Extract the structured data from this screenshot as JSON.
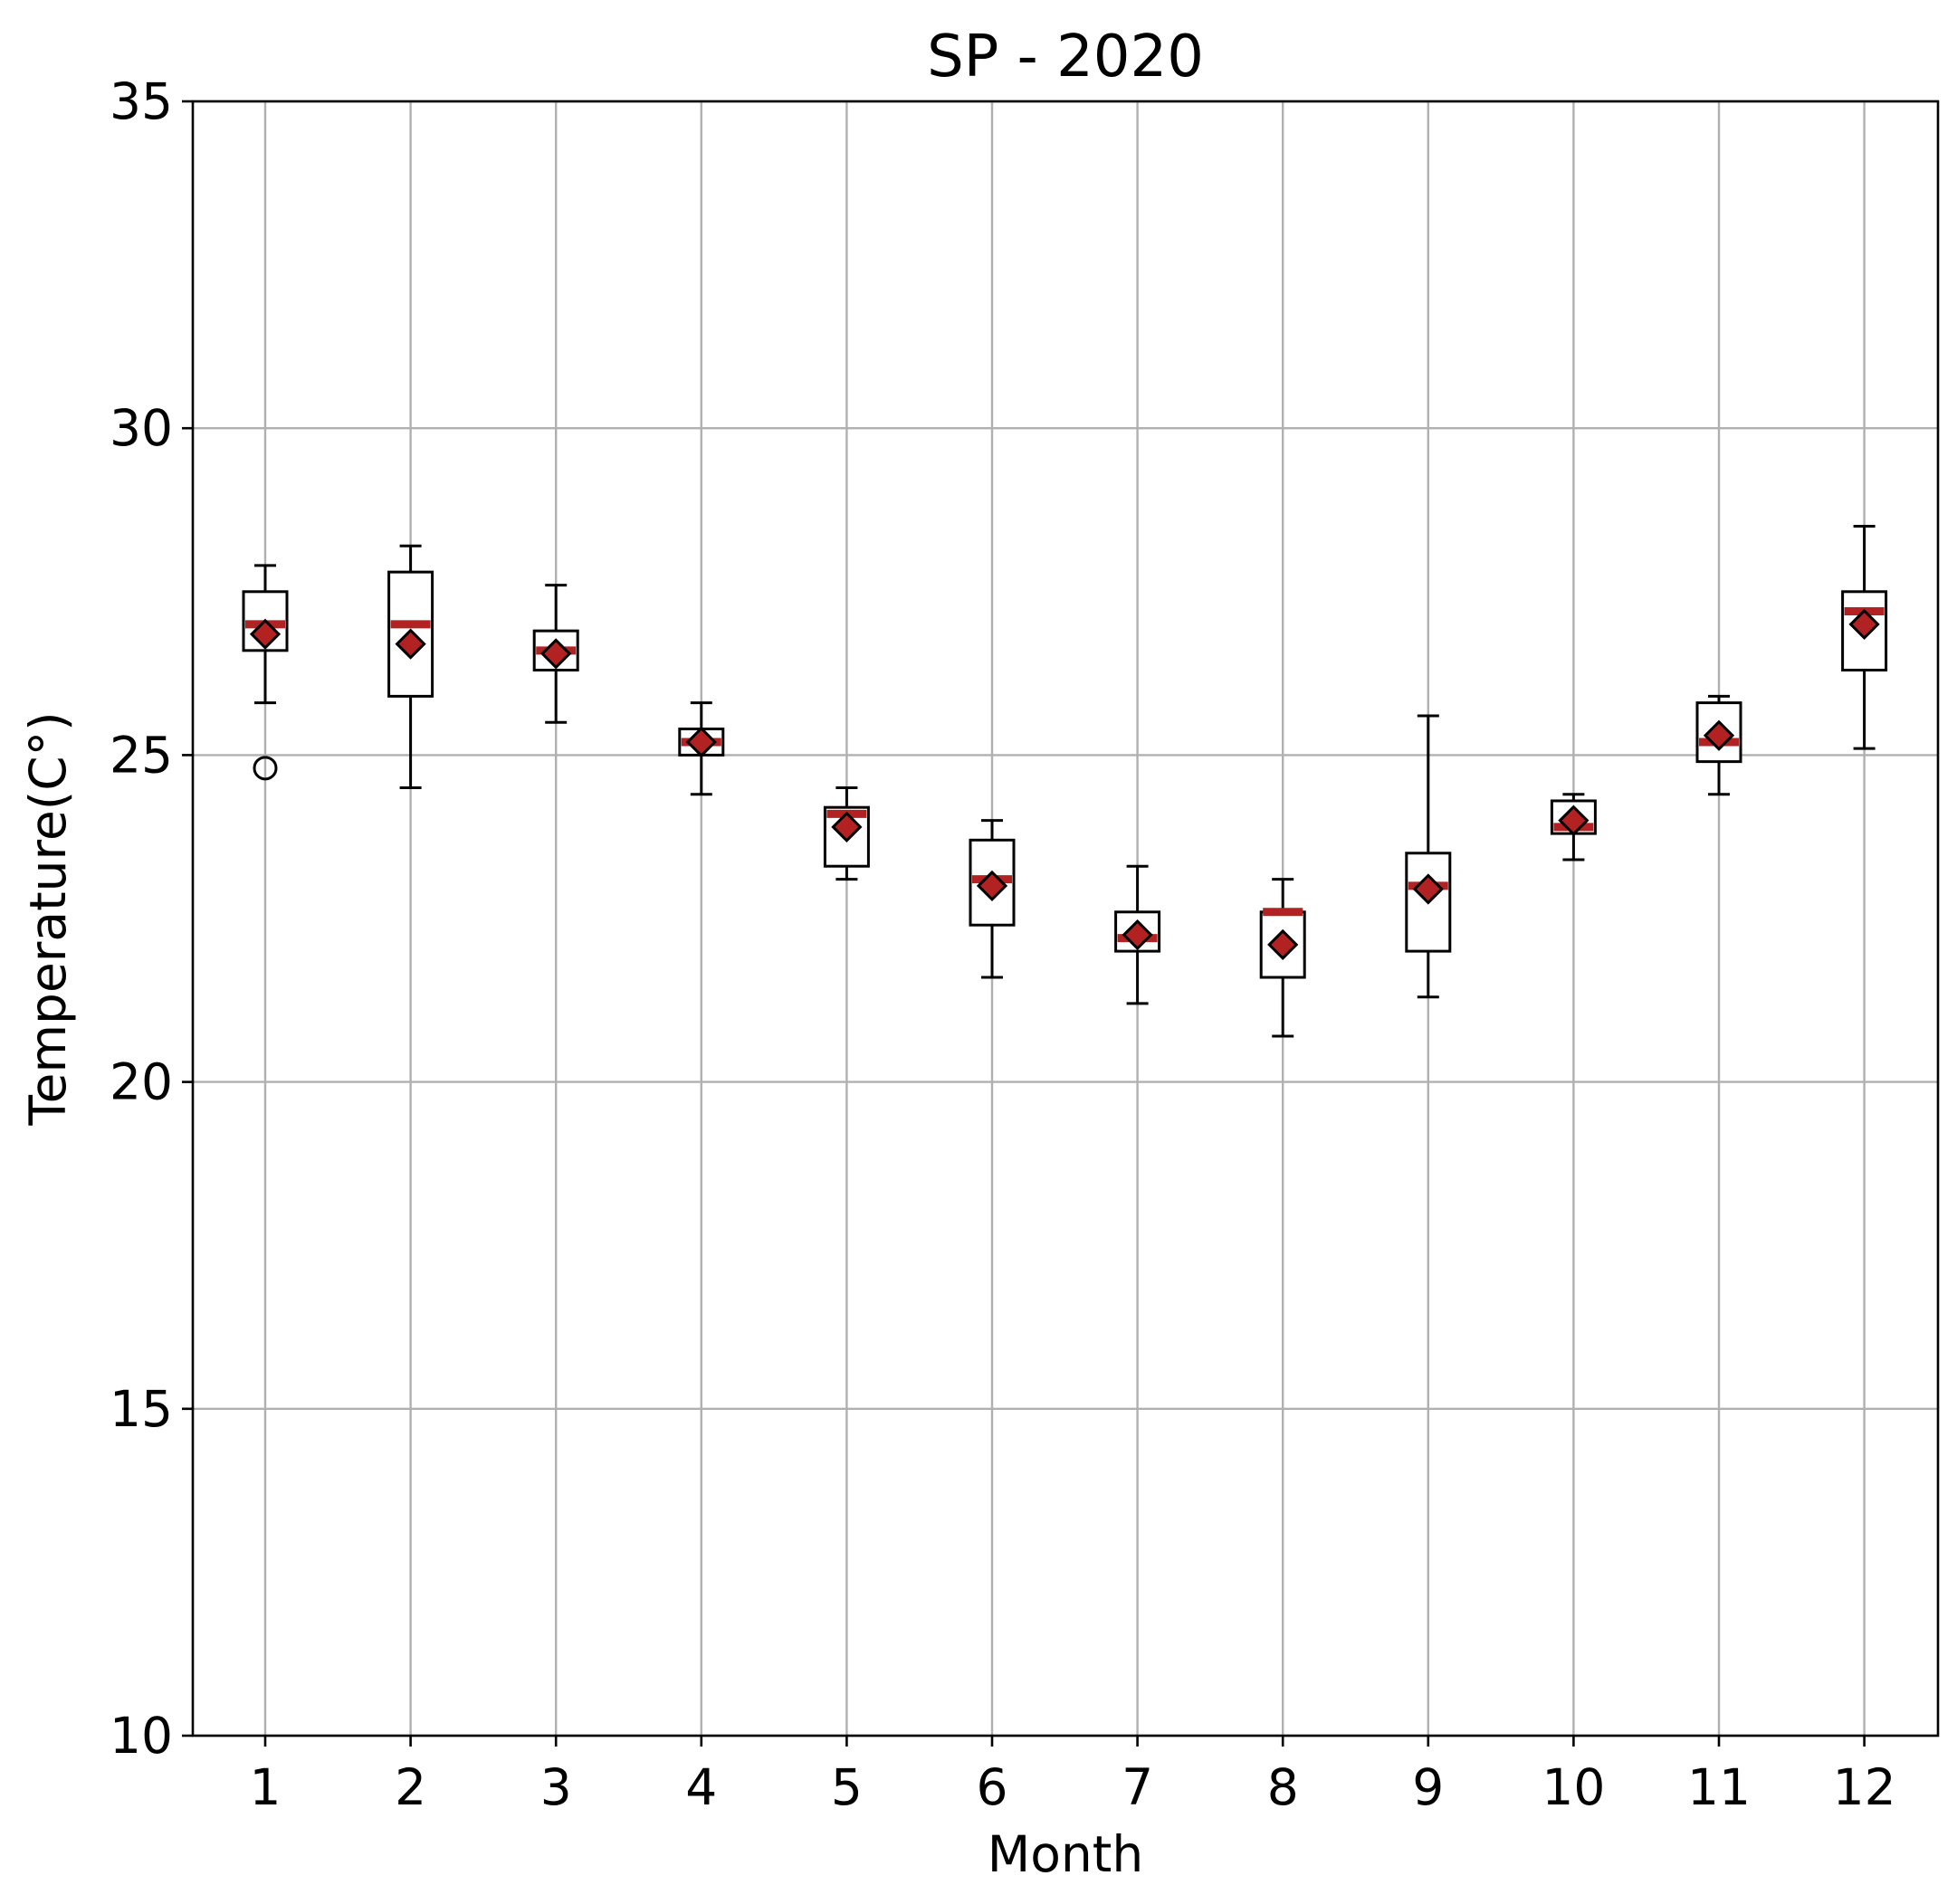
{
  "chart_data": {
    "type": "box",
    "title": "SP - 2020",
    "xlabel": "Month",
    "ylabel": "Temperature(C°)",
    "ylim": [
      10,
      35
    ],
    "yticks": [
      10,
      15,
      20,
      25,
      30,
      35
    ],
    "grid": true,
    "categories": [
      "1",
      "2",
      "3",
      "4",
      "5",
      "6",
      "7",
      "8",
      "9",
      "10",
      "11",
      "12"
    ],
    "boxes": [
      {
        "category": "1",
        "whisker_low": 25.8,
        "q1": 26.6,
        "median": 27.0,
        "q3": 27.5,
        "whisker_high": 27.9,
        "mean": 26.85,
        "fliers": [
          24.8
        ]
      },
      {
        "category": "2",
        "whisker_low": 24.5,
        "q1": 25.9,
        "median": 27.0,
        "q3": 27.8,
        "whisker_high": 28.2,
        "mean": 26.7,
        "fliers": []
      },
      {
        "category": "3",
        "whisker_low": 25.5,
        "q1": 26.3,
        "median": 26.6,
        "q3": 26.9,
        "whisker_high": 27.6,
        "mean": 26.55,
        "fliers": []
      },
      {
        "category": "4",
        "whisker_low": 24.4,
        "q1": 25.0,
        "median": 25.2,
        "q3": 25.4,
        "whisker_high": 25.8,
        "mean": 25.2,
        "fliers": []
      },
      {
        "category": "5",
        "whisker_low": 23.1,
        "q1": 23.3,
        "median": 24.1,
        "q3": 24.2,
        "whisker_high": 24.5,
        "mean": 23.9,
        "fliers": []
      },
      {
        "category": "6",
        "whisker_low": 21.6,
        "q1": 22.4,
        "median": 23.1,
        "q3": 23.7,
        "whisker_high": 24.0,
        "mean": 23.0,
        "fliers": []
      },
      {
        "category": "7",
        "whisker_low": 21.2,
        "q1": 22.0,
        "median": 22.2,
        "q3": 22.6,
        "whisker_high": 23.3,
        "mean": 22.25,
        "fliers": []
      },
      {
        "category": "8",
        "whisker_low": 20.7,
        "q1": 21.6,
        "median": 22.6,
        "q3": 22.6,
        "whisker_high": 23.1,
        "mean": 22.1,
        "fliers": []
      },
      {
        "category": "9",
        "whisker_low": 21.3,
        "q1": 22.0,
        "median": 23.0,
        "q3": 23.5,
        "whisker_high": 25.6,
        "mean": 22.95,
        "fliers": []
      },
      {
        "category": "10",
        "whisker_low": 23.4,
        "q1": 23.8,
        "median": 23.9,
        "q3": 24.3,
        "whisker_high": 24.4,
        "mean": 24.0,
        "fliers": []
      },
      {
        "category": "11",
        "whisker_low": 24.4,
        "q1": 24.9,
        "median": 25.2,
        "q3": 25.8,
        "whisker_high": 25.9,
        "mean": 25.3,
        "fliers": []
      },
      {
        "category": "12",
        "whisker_low": 25.1,
        "q1": 26.3,
        "median": 27.2,
        "q3": 27.5,
        "whisker_high": 28.5,
        "mean": 27.0,
        "fliers": []
      }
    ],
    "colors": {
      "median": "#b22222",
      "mean_marker": "#b22222",
      "grid": "#b0b0b0"
    }
  }
}
